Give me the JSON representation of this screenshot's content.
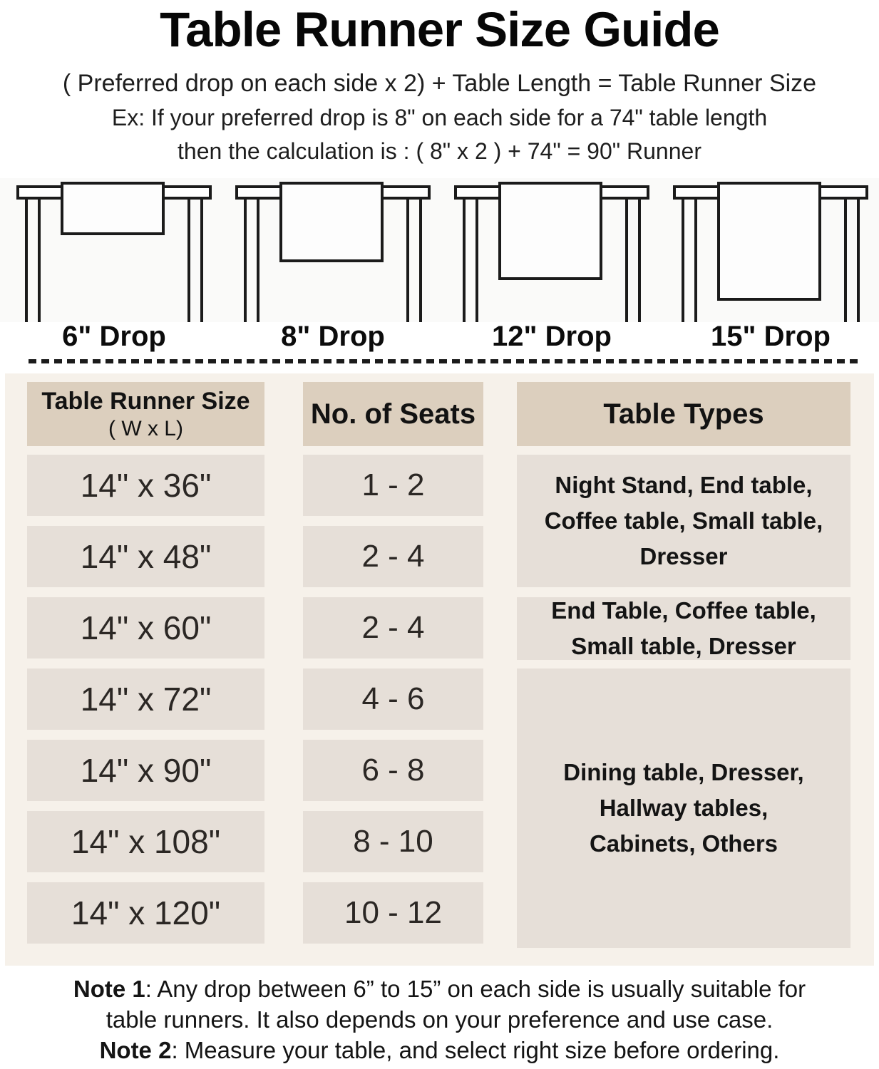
{
  "page": {
    "title": "Table Runner Size Guide",
    "formula": "( Preferred drop on each side x 2) + Table Length = Table Runner Size",
    "example_line1": "Ex: If your preferred drop is 8\" on each side for a 74\" table length",
    "example_line2": "then the calculation is : ( 8\" x 2 ) + 74\" = 90\" Runner"
  },
  "drops": [
    {
      "label": "6\" Drop",
      "inches": 6
    },
    {
      "label": "8\" Drop",
      "inches": 8
    },
    {
      "label": "12\" Drop",
      "inches": 12
    },
    {
      "label": "15\" Drop",
      "inches": 15
    }
  ],
  "size_table": {
    "headers": {
      "runner_size_title": "Table Runner Size",
      "runner_size_sub": "( W x L)",
      "seats": "No. of Seats",
      "types": "Table Types"
    },
    "rows": [
      {
        "size": "14\" x 36\"",
        "seats": "1 - 2"
      },
      {
        "size": "14\" x 48\"",
        "seats": "2 - 4"
      },
      {
        "size": "14\" x 60\"",
        "seats": "2 - 4"
      },
      {
        "size": "14\" x 72\"",
        "seats": "4 - 6"
      },
      {
        "size": "14\" x 90\"",
        "seats": "6 - 8"
      },
      {
        "size": "14\" x 108\"",
        "seats": "8 - 10"
      },
      {
        "size": "14\" x 120\"",
        "seats": "10 - 12"
      }
    ],
    "types": [
      {
        "text": "Night Stand, End table, Coffee table, Small table, Dresser",
        "rows_spanned": 2
      },
      {
        "text": "End Table, Coffee table, Small table, Dresser",
        "rows_spanned": 1
      },
      {
        "text": "Dining table, Dresser, Hallway tables, Cabinets, Others",
        "rows_spanned": 4
      }
    ]
  },
  "notes": {
    "note1_label": "Note 1",
    "note1_line1": ": Any drop between 6” to 15” on each side is usually suitable for",
    "note1_line2": "table runners. It also depends on your preference and use case.",
    "note2_label": "Note 2",
    "note2_text": ": Measure your table, and select right size before ordering."
  },
  "colors": {
    "header_cell": "#dccfbe",
    "row_cell": "#e6dfd8",
    "panel_bg": "#f6f1ea",
    "figure_bg": "#fafaf9",
    "line_color": "#1b1b1b"
  }
}
